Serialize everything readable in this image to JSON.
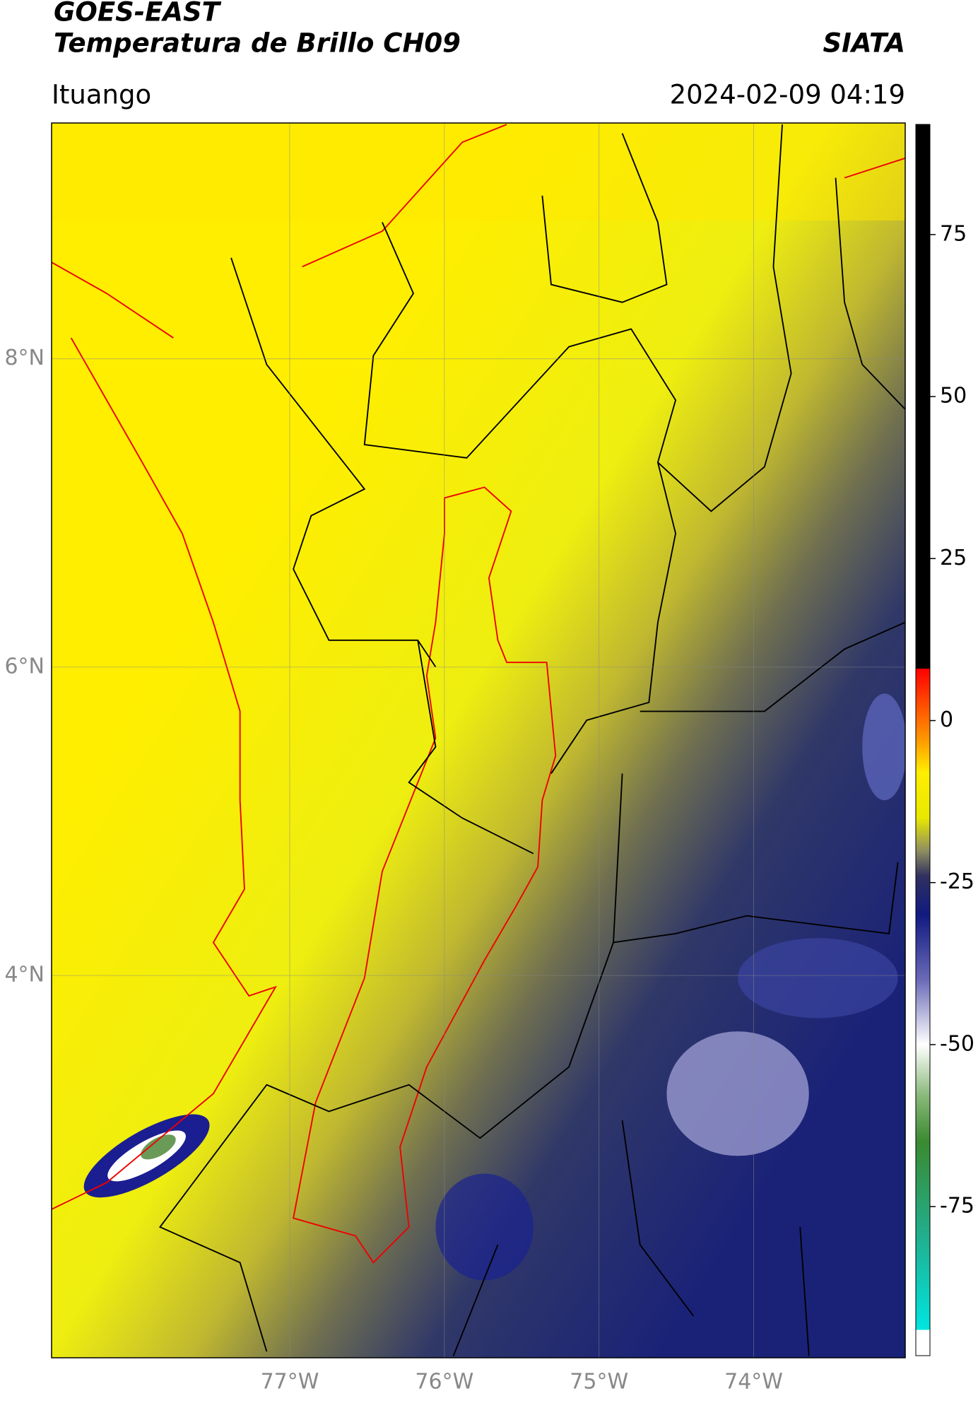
{
  "header": {
    "title_line1": "GOES-EAST",
    "title_line2": "Temperatura de Brillo CH09",
    "org": "SIATA",
    "place": "Ituango",
    "datetime": "2024-02-09 04:19"
  },
  "map": {
    "xlim": [
      -78.54,
      -73.02
    ],
    "ylim": [
      1.52,
      9.53
    ],
    "xticks": [
      {
        "value": -77,
        "label": "77°W"
      },
      {
        "value": -76,
        "label": "76°W"
      },
      {
        "value": -75,
        "label": "75°W"
      },
      {
        "value": -74,
        "label": "74°W"
      }
    ],
    "yticks": [
      {
        "value": 4,
        "label": "4°N"
      },
      {
        "value": 6,
        "label": "6°N"
      },
      {
        "value": 8,
        "label": "8°N"
      }
    ],
    "grid": true
  },
  "colorbar": {
    "lim": [
      -98,
      92
    ],
    "ticks": [
      75,
      50,
      25,
      0,
      -25,
      -50,
      -75
    ],
    "colors": [
      {
        "value": -98,
        "color": "#ffffff"
      },
      {
        "value": -94,
        "color": "#ffffff"
      },
      {
        "value": -94,
        "color": "#00e5e0"
      },
      {
        "value": -80,
        "color": "#20b090"
      },
      {
        "value": -65,
        "color": "#3a8a30"
      },
      {
        "value": -58,
        "color": "#88b878"
      },
      {
        "value": -50,
        "color": "#ffffff"
      },
      {
        "value": -40,
        "color": "#6a6ab8"
      },
      {
        "value": -30,
        "color": "#101a80"
      },
      {
        "value": -24,
        "color": "#303060"
      },
      {
        "value": -20,
        "color": "#909060"
      },
      {
        "value": -15,
        "color": "#e8e800"
      },
      {
        "value": -8,
        "color": "#ffee00"
      },
      {
        "value": -3,
        "color": "#ff9900"
      },
      {
        "value": 8,
        "color": "#ff0000"
      },
      {
        "value": 8,
        "color": "#000000"
      },
      {
        "value": 92,
        "color": "#000000"
      }
    ]
  }
}
